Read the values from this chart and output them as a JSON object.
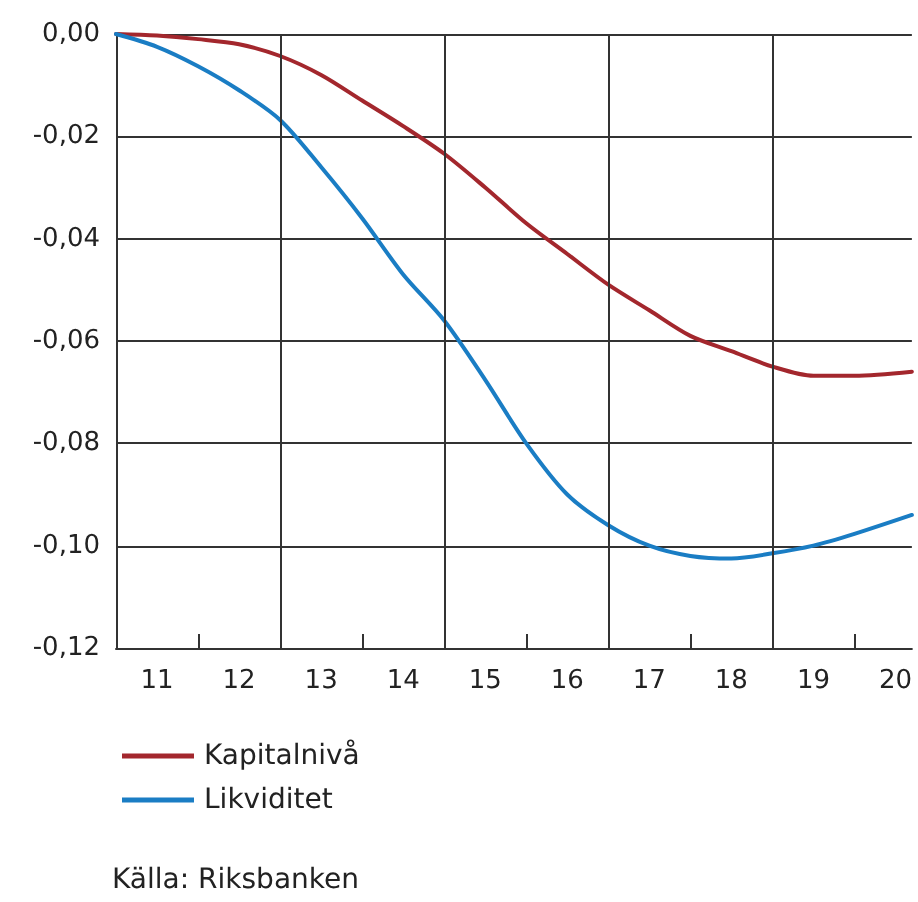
{
  "chart_data": {
    "type": "line",
    "x": [
      11,
      11.5,
      12,
      12.5,
      13,
      13.5,
      14,
      14.5,
      15,
      15.5,
      16,
      16.5,
      17,
      17.5,
      18,
      18.5,
      19,
      19.5,
      20,
      20.7
    ],
    "series": [
      {
        "name": "Kapitalnivå",
        "color": "#a3272d",
        "values": [
          0,
          -0.0003,
          -0.001,
          -0.002,
          -0.0043,
          -0.008,
          -0.013,
          -0.018,
          -0.0234,
          -0.03,
          -0.037,
          -0.043,
          -0.049,
          -0.054,
          -0.059,
          -0.062,
          -0.065,
          -0.0668,
          -0.0668,
          -0.066
        ]
      },
      {
        "name": "Likviditet",
        "color": "#1a7dc4",
        "values": [
          0,
          -0.0025,
          -0.0063,
          -0.011,
          -0.0168,
          -0.026,
          -0.036,
          -0.047,
          -0.056,
          -0.0676,
          -0.08,
          -0.09,
          -0.096,
          -0.1,
          -0.102,
          -0.1025,
          -0.1015,
          -0.1,
          -0.0977,
          -0.094
        ]
      }
    ],
    "xlim": [
      11,
      20.7
    ],
    "xticks": [
      {
        "value": 11.5,
        "label": "11"
      },
      {
        "value": 12.5,
        "label": "12"
      },
      {
        "value": 13.5,
        "label": "13"
      },
      {
        "value": 14.5,
        "label": "14"
      },
      {
        "value": 15.5,
        "label": "15"
      },
      {
        "value": 16.5,
        "label": "16"
      },
      {
        "value": 17.5,
        "label": "17"
      },
      {
        "value": 18.5,
        "label": "18"
      },
      {
        "value": 19.5,
        "label": "19"
      },
      {
        "value": 20.5,
        "label": "20"
      },
      {
        "value": 12,
        "label": null
      },
      {
        "value": 14,
        "label": null
      },
      {
        "value": 16,
        "label": null
      },
      {
        "value": 18,
        "label": null
      },
      {
        "value": 20,
        "label": null
      }
    ],
    "ylim": [
      -0.12,
      0
    ],
    "yticks": [
      {
        "value": -0.12,
        "label": "-0,12"
      },
      {
        "value": -0.1,
        "label": "-0,10"
      },
      {
        "value": -0.08,
        "label": "-0,08"
      },
      {
        "value": -0.06,
        "label": "-0,06"
      },
      {
        "value": -0.04,
        "label": "-0,04"
      },
      {
        "value": -0.02,
        "label": "-0,02"
      },
      {
        "value": 0,
        "label": "0,00"
      }
    ],
    "ref_lines": [
      {
        "axis": "x",
        "value": 13,
        "color": "#333333"
      },
      {
        "axis": "x",
        "value": 15,
        "color": "#333333"
      },
      {
        "axis": "x",
        "value": 17,
        "color": "#333333"
      },
      {
        "axis": "x",
        "value": 19,
        "color": "#333333"
      }
    ],
    "grid": "y",
    "legend": "bottom left",
    "marker": "none",
    "line_style": "solid",
    "annotations": [
      "Källa: Riksbanken"
    ]
  }
}
